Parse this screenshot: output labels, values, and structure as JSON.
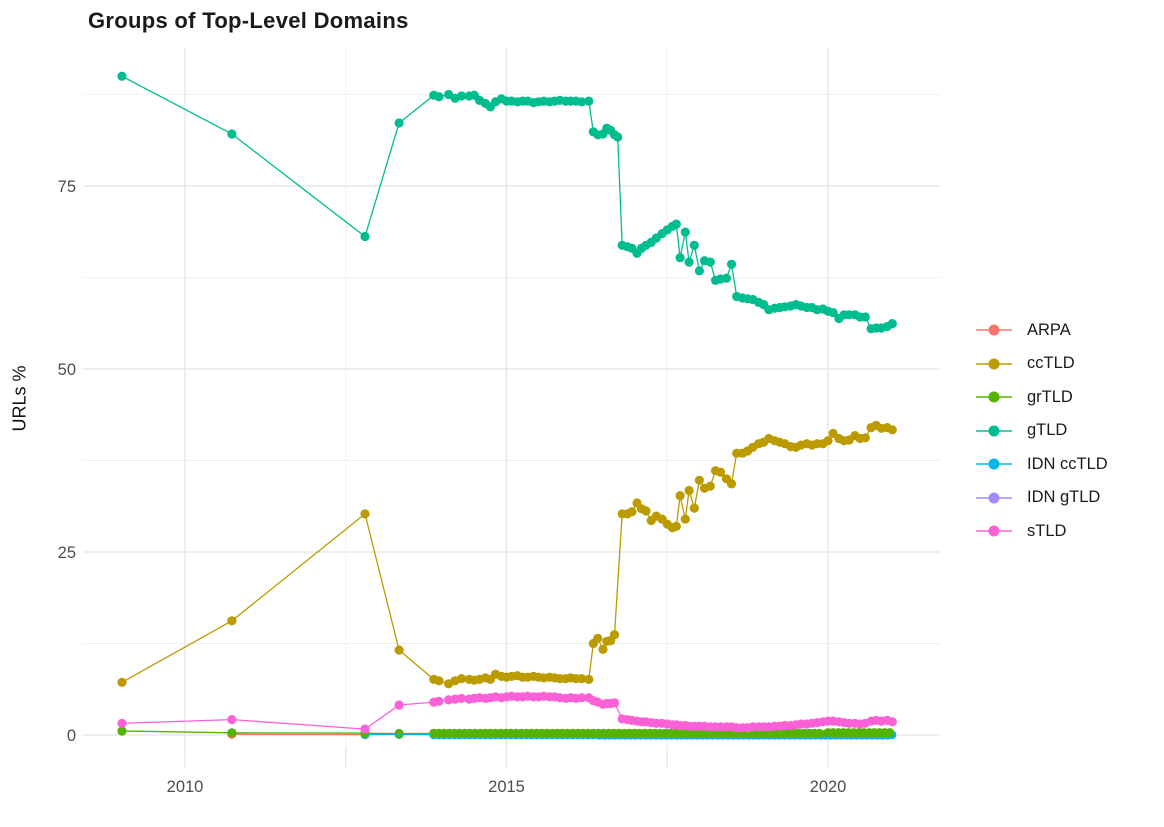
{
  "title": "Groups of Top-Level Domains",
  "chart_data": {
    "type": "line",
    "title": "Groups of Top-Level Domains",
    "xlabel": "",
    "ylabel": "URLs %",
    "x_ticks": [
      2010,
      2015,
      2020
    ],
    "x_tick_labels": [
      "2010",
      "2015",
      "2020"
    ],
    "x_minor": [
      2012.5,
      2017.5
    ],
    "y_ticks": [
      0,
      25,
      50,
      75
    ],
    "y_tick_labels": [
      "0",
      "25",
      "50",
      "75"
    ],
    "y_minor": [
      12.5,
      37.5,
      62.5,
      87.5
    ],
    "xlim": [
      2008.5,
      2021.7
    ],
    "ylim": [
      -1.8,
      94.3
    ],
    "grid": true,
    "legend_position": "right",
    "marker": "point",
    "series": [
      {
        "name": "ARPA",
        "color": "#F8766D",
        "points": [
          [
            2010.73,
            0.1
          ],
          [
            2012.8,
            0.05
          ]
        ]
      },
      {
        "name": "ccTLD",
        "color": "#BC9B00",
        "points": [
          [
            2009.02,
            7.2
          ],
          [
            2010.73,
            15.6
          ],
          [
            2012.8,
            30.2
          ],
          [
            2013.33,
            11.6
          ],
          [
            2013.87,
            7.6
          ],
          [
            2013.95,
            7.4
          ],
          [
            2014.1,
            7.0
          ],
          [
            2014.2,
            7.4
          ],
          [
            2014.3,
            7.7
          ],
          [
            2014.42,
            7.6
          ],
          [
            2014.5,
            7.5
          ],
          [
            2014.58,
            7.6
          ],
          [
            2014.67,
            7.8
          ],
          [
            2014.75,
            7.6
          ],
          [
            2014.83,
            8.3
          ],
          [
            2014.92,
            8.0
          ],
          [
            2015.0,
            7.9
          ],
          [
            2015.08,
            8.0
          ],
          [
            2015.17,
            8.1
          ],
          [
            2015.25,
            7.9
          ],
          [
            2015.33,
            7.9
          ],
          [
            2015.42,
            8.0
          ],
          [
            2015.5,
            7.9
          ],
          [
            2015.58,
            7.8
          ],
          [
            2015.67,
            7.9
          ],
          [
            2015.75,
            7.8
          ],
          [
            2015.83,
            7.7
          ],
          [
            2015.92,
            7.7
          ],
          [
            2016.0,
            7.8
          ],
          [
            2016.08,
            7.7
          ],
          [
            2016.17,
            7.7
          ],
          [
            2016.28,
            7.6
          ],
          [
            2016.35,
            12.5
          ],
          [
            2016.42,
            13.2
          ],
          [
            2016.5,
            11.7
          ],
          [
            2016.56,
            12.8
          ],
          [
            2016.62,
            12.9
          ],
          [
            2016.68,
            13.7
          ],
          [
            2016.8,
            30.2
          ],
          [
            2016.88,
            30.2
          ],
          [
            2016.95,
            30.5
          ],
          [
            2017.03,
            31.7
          ],
          [
            2017.1,
            30.9
          ],
          [
            2017.17,
            30.6
          ],
          [
            2017.25,
            29.3
          ],
          [
            2017.33,
            29.9
          ],
          [
            2017.42,
            29.5
          ],
          [
            2017.5,
            28.8
          ],
          [
            2017.58,
            28.3
          ],
          [
            2017.64,
            28.5
          ],
          [
            2017.7,
            32.7
          ],
          [
            2017.78,
            29.5
          ],
          [
            2017.84,
            33.4
          ],
          [
            2017.92,
            31.0
          ],
          [
            2018.0,
            34.8
          ],
          [
            2018.08,
            33.7
          ],
          [
            2018.17,
            34.0
          ],
          [
            2018.25,
            36.1
          ],
          [
            2018.33,
            35.9
          ],
          [
            2018.42,
            35.0
          ],
          [
            2018.5,
            34.3
          ],
          [
            2018.58,
            38.5
          ],
          [
            2018.67,
            38.5
          ],
          [
            2018.75,
            38.8
          ],
          [
            2018.83,
            39.3
          ],
          [
            2018.92,
            39.8
          ],
          [
            2019.0,
            40.0
          ],
          [
            2019.08,
            40.5
          ],
          [
            2019.17,
            40.2
          ],
          [
            2019.25,
            40.0
          ],
          [
            2019.33,
            39.8
          ],
          [
            2019.42,
            39.4
          ],
          [
            2019.5,
            39.3
          ],
          [
            2019.58,
            39.6
          ],
          [
            2019.67,
            39.8
          ],
          [
            2019.75,
            39.6
          ],
          [
            2019.83,
            39.8
          ],
          [
            2019.92,
            39.8
          ],
          [
            2020.0,
            40.2
          ],
          [
            2020.08,
            41.2
          ],
          [
            2020.17,
            40.5
          ],
          [
            2020.25,
            40.2
          ],
          [
            2020.33,
            40.3
          ],
          [
            2020.42,
            40.9
          ],
          [
            2020.5,
            40.5
          ],
          [
            2020.58,
            40.6
          ],
          [
            2020.67,
            42.0
          ],
          [
            2020.75,
            42.3
          ],
          [
            2020.83,
            41.9
          ],
          [
            2020.92,
            42.0
          ],
          [
            2021.0,
            41.7
          ]
        ]
      },
      {
        "name": "grTLD",
        "color": "#53B400",
        "points": [
          [
            2009.02,
            0.55
          ],
          [
            2010.73,
            0.3
          ],
          [
            2012.8,
            0.25
          ],
          [
            2013.33,
            0.2
          ]
        ],
        "dense": [
          {
            "from": 2013.87,
            "to": 2019.92,
            "step": 0.08,
            "value": 0.22
          },
          {
            "from": 2020.0,
            "to": 2021.0,
            "step": 0.08,
            "value": 0.32
          }
        ]
      },
      {
        "name": "gTLD",
        "color": "#00BD8F",
        "points": [
          [
            2009.02,
            90.0
          ],
          [
            2010.73,
            82.1
          ],
          [
            2012.8,
            68.1
          ],
          [
            2013.33,
            83.6
          ],
          [
            2013.87,
            87.4
          ],
          [
            2013.95,
            87.2
          ],
          [
            2014.1,
            87.5
          ],
          [
            2014.2,
            87.0
          ],
          [
            2014.3,
            87.3
          ],
          [
            2014.42,
            87.3
          ],
          [
            2014.5,
            87.4
          ],
          [
            2014.58,
            86.7
          ],
          [
            2014.67,
            86.3
          ],
          [
            2014.75,
            85.8
          ],
          [
            2014.83,
            86.5
          ],
          [
            2014.92,
            86.9
          ],
          [
            2015.0,
            86.6
          ],
          [
            2015.08,
            86.6
          ],
          [
            2015.17,
            86.5
          ],
          [
            2015.25,
            86.6
          ],
          [
            2015.33,
            86.6
          ],
          [
            2015.42,
            86.4
          ],
          [
            2015.5,
            86.5
          ],
          [
            2015.58,
            86.6
          ],
          [
            2015.67,
            86.5
          ],
          [
            2015.75,
            86.6
          ],
          [
            2015.83,
            86.7
          ],
          [
            2015.92,
            86.6
          ],
          [
            2016.0,
            86.6
          ],
          [
            2016.08,
            86.6
          ],
          [
            2016.17,
            86.5
          ],
          [
            2016.28,
            86.6
          ],
          [
            2016.35,
            82.4
          ],
          [
            2016.42,
            82.0
          ],
          [
            2016.5,
            82.1
          ],
          [
            2016.56,
            82.9
          ],
          [
            2016.62,
            82.6
          ],
          [
            2016.68,
            82.0
          ],
          [
            2016.73,
            81.7
          ],
          [
            2016.8,
            66.9
          ],
          [
            2016.88,
            66.7
          ],
          [
            2016.95,
            66.5
          ],
          [
            2017.03,
            65.8
          ],
          [
            2017.1,
            66.5
          ],
          [
            2017.17,
            66.9
          ],
          [
            2017.25,
            67.3
          ],
          [
            2017.33,
            67.9
          ],
          [
            2017.42,
            68.5
          ],
          [
            2017.5,
            69.0
          ],
          [
            2017.58,
            69.5
          ],
          [
            2017.64,
            69.8
          ],
          [
            2017.7,
            65.2
          ],
          [
            2017.78,
            68.7
          ],
          [
            2017.84,
            64.6
          ],
          [
            2017.92,
            66.9
          ],
          [
            2018.0,
            63.4
          ],
          [
            2018.08,
            64.8
          ],
          [
            2018.17,
            64.6
          ],
          [
            2018.25,
            62.1
          ],
          [
            2018.33,
            62.3
          ],
          [
            2018.42,
            62.4
          ],
          [
            2018.5,
            64.3
          ],
          [
            2018.58,
            59.9
          ],
          [
            2018.67,
            59.7
          ],
          [
            2018.75,
            59.6
          ],
          [
            2018.83,
            59.5
          ],
          [
            2018.92,
            59.1
          ],
          [
            2019.0,
            58.8
          ],
          [
            2019.08,
            58.1
          ],
          [
            2019.17,
            58.3
          ],
          [
            2019.25,
            58.4
          ],
          [
            2019.33,
            58.5
          ],
          [
            2019.42,
            58.6
          ],
          [
            2019.5,
            58.8
          ],
          [
            2019.58,
            58.6
          ],
          [
            2019.67,
            58.4
          ],
          [
            2019.75,
            58.4
          ],
          [
            2019.83,
            58.1
          ],
          [
            2019.92,
            58.2
          ],
          [
            2020.0,
            57.9
          ],
          [
            2020.08,
            57.7
          ],
          [
            2020.17,
            56.9
          ],
          [
            2020.25,
            57.4
          ],
          [
            2020.33,
            57.4
          ],
          [
            2020.42,
            57.4
          ],
          [
            2020.5,
            57.1
          ],
          [
            2020.58,
            57.1
          ],
          [
            2020.67,
            55.5
          ],
          [
            2020.75,
            55.6
          ],
          [
            2020.83,
            55.6
          ],
          [
            2020.92,
            55.8
          ],
          [
            2021.0,
            56.2
          ]
        ]
      },
      {
        "name": "IDN ccTLD",
        "color": "#00B6EB",
        "points": [
          [
            2012.8,
            0.08
          ],
          [
            2013.33,
            0.08
          ]
        ],
        "dense": [
          {
            "from": 2013.87,
            "to": 2021.0,
            "step": 0.08,
            "value": 0.06
          }
        ]
      },
      {
        "name": "IDN gTLD",
        "color": "#A58AFF",
        "points": [],
        "dense": [
          {
            "from": 2016.45,
            "to": 2021.0,
            "step": 0.08,
            "value": -0.02
          }
        ]
      },
      {
        "name": "sTLD",
        "color": "#FB61D7",
        "points": [
          [
            2009.02,
            1.6
          ],
          [
            2010.73,
            2.1
          ],
          [
            2012.8,
            0.8
          ],
          [
            2013.33,
            4.1
          ],
          [
            2013.87,
            4.5
          ],
          [
            2013.95,
            4.6
          ],
          [
            2014.1,
            4.8
          ],
          [
            2014.2,
            4.9
          ],
          [
            2014.3,
            5.0
          ],
          [
            2014.42,
            4.9
          ],
          [
            2014.5,
            5.0
          ],
          [
            2014.58,
            5.1
          ],
          [
            2014.67,
            5.0
          ],
          [
            2014.75,
            5.1
          ],
          [
            2014.83,
            5.2
          ],
          [
            2014.92,
            5.1
          ],
          [
            2015.0,
            5.2
          ],
          [
            2015.08,
            5.3
          ],
          [
            2015.17,
            5.2
          ],
          [
            2015.25,
            5.2
          ],
          [
            2015.33,
            5.3
          ],
          [
            2015.42,
            5.2
          ],
          [
            2015.5,
            5.2
          ],
          [
            2015.58,
            5.3
          ],
          [
            2015.67,
            5.2
          ],
          [
            2015.75,
            5.2
          ],
          [
            2015.83,
            5.1
          ],
          [
            2015.92,
            5.0
          ],
          [
            2016.0,
            5.1
          ],
          [
            2016.08,
            5.0
          ],
          [
            2016.17,
            5.1
          ],
          [
            2016.28,
            5.1
          ],
          [
            2016.35,
            4.7
          ],
          [
            2016.42,
            4.5
          ],
          [
            2016.5,
            4.2
          ],
          [
            2016.56,
            4.3
          ],
          [
            2016.62,
            4.3
          ],
          [
            2016.68,
            4.4
          ],
          [
            2016.8,
            2.2
          ],
          [
            2016.88,
            2.1
          ],
          [
            2016.95,
            2.0
          ],
          [
            2017.03,
            1.9
          ],
          [
            2017.1,
            1.8
          ],
          [
            2017.17,
            1.8
          ],
          [
            2017.25,
            1.7
          ],
          [
            2017.33,
            1.6
          ],
          [
            2017.42,
            1.6
          ],
          [
            2017.5,
            1.5
          ],
          [
            2017.58,
            1.4
          ],
          [
            2017.64,
            1.4
          ],
          [
            2017.7,
            1.3
          ],
          [
            2017.78,
            1.3
          ],
          [
            2017.84,
            1.2
          ],
          [
            2017.92,
            1.2
          ],
          [
            2018.0,
            1.2
          ],
          [
            2018.08,
            1.2
          ],
          [
            2018.17,
            1.1
          ],
          [
            2018.25,
            1.1
          ],
          [
            2018.33,
            1.1
          ],
          [
            2018.42,
            1.1
          ],
          [
            2018.5,
            1.1
          ],
          [
            2018.58,
            1.0
          ],
          [
            2018.67,
            1.0
          ],
          [
            2018.75,
            1.0
          ],
          [
            2018.83,
            1.1
          ],
          [
            2018.92,
            1.1
          ],
          [
            2019.0,
            1.1
          ],
          [
            2019.08,
            1.1
          ],
          [
            2019.17,
            1.2
          ],
          [
            2019.25,
            1.2
          ],
          [
            2019.33,
            1.3
          ],
          [
            2019.42,
            1.3
          ],
          [
            2019.5,
            1.4
          ],
          [
            2019.58,
            1.5
          ],
          [
            2019.67,
            1.5
          ],
          [
            2019.75,
            1.6
          ],
          [
            2019.83,
            1.7
          ],
          [
            2019.92,
            1.8
          ],
          [
            2020.0,
            1.9
          ],
          [
            2020.08,
            1.9
          ],
          [
            2020.17,
            1.8
          ],
          [
            2020.25,
            1.7
          ],
          [
            2020.33,
            1.6
          ],
          [
            2020.42,
            1.6
          ],
          [
            2020.5,
            1.5
          ],
          [
            2020.58,
            1.6
          ],
          [
            2020.67,
            1.9
          ],
          [
            2020.75,
            2.0
          ],
          [
            2020.83,
            1.9
          ],
          [
            2020.92,
            2.0
          ],
          [
            2021.0,
            1.8
          ]
        ]
      }
    ],
    "colors": {
      "major_grid": "#E4E4E4",
      "minor_grid": "#F1F1F1",
      "tick_label": "#4d4d4d",
      "title": "#1a1a1a",
      "background": "#ffffff"
    }
  }
}
